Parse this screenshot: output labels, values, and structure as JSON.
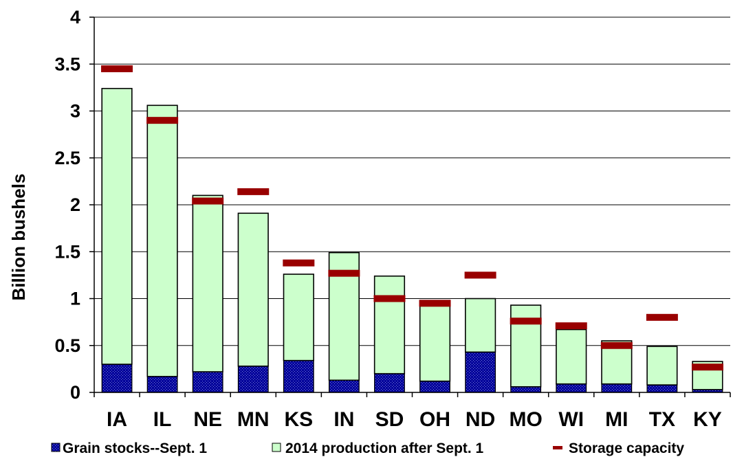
{
  "chart_data": {
    "type": "bar",
    "stacked": true,
    "title": "",
    "xlabel": "",
    "ylabel": "Billion bushels",
    "ylim": [
      0,
      4
    ],
    "yticks": [
      0,
      0.5,
      1,
      1.5,
      2,
      2.5,
      3,
      3.5,
      4
    ],
    "ytick_labels": [
      "0",
      "0.5",
      "1",
      "1.5",
      "2",
      "2.5",
      "3",
      "3.5",
      "4"
    ],
    "grid": "horizontal",
    "legend_position": "bottom",
    "categories": [
      "IA",
      "IL",
      "NE",
      "MN",
      "KS",
      "IN",
      "SD",
      "OH",
      "ND",
      "MO",
      "WI",
      "MI",
      "TX",
      "KY"
    ],
    "series": [
      {
        "name": "Grain stocks--Sept. 1",
        "kind": "bar",
        "color": "#000099",
        "pattern": "dotted",
        "values": [
          0.3,
          0.17,
          0.22,
          0.28,
          0.34,
          0.13,
          0.2,
          0.12,
          0.43,
          0.06,
          0.09,
          0.09,
          0.08,
          0.03
        ]
      },
      {
        "name": "2014 production after Sept. 1",
        "kind": "bar",
        "color": "#ccffcc",
        "values": [
          2.94,
          2.89,
          1.88,
          1.63,
          0.92,
          1.36,
          1.04,
          0.86,
          0.57,
          0.87,
          0.58,
          0.46,
          0.41,
          0.3
        ]
      },
      {
        "name": "Storage capacity",
        "kind": "marker",
        "color": "#990000",
        "values": [
          3.45,
          2.9,
          2.04,
          2.14,
          1.38,
          1.27,
          1.0,
          0.95,
          1.25,
          0.76,
          0.71,
          0.5,
          0.8,
          0.27
        ]
      }
    ]
  }
}
